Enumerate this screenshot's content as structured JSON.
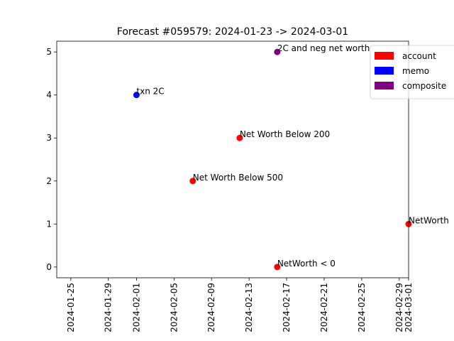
{
  "chart_data": {
    "type": "scatter",
    "title": "Forecast #059579: 2024-01-23 -> 2024-03-01",
    "xlabel": "",
    "ylabel": "",
    "x_type": "date",
    "xlim": [
      "2024-01-23",
      "2024-03-01"
    ],
    "ylim": [
      -0.25,
      5.25
    ],
    "x_ticks": [
      "2024-01-25",
      "2024-01-29",
      "2024-02-01",
      "2024-02-05",
      "2024-02-09",
      "2024-02-13",
      "2024-02-17",
      "2024-02-21",
      "2024-02-25",
      "2024-02-29",
      "2024-03-01"
    ],
    "y_ticks": [
      0,
      1,
      2,
      3,
      4,
      5
    ],
    "grid": false,
    "legend_position": "top-right",
    "legend": [
      {
        "label": "account",
        "color": "#ff0000"
      },
      {
        "label": "memo",
        "color": "#0000ff"
      },
      {
        "label": "composite",
        "color": "#800080"
      }
    ],
    "points": [
      {
        "x": "2024-02-01",
        "y": 4,
        "label": "txn 2C",
        "color": "#0000ff"
      },
      {
        "x": "2024-02-07",
        "y": 2,
        "label": "Net Worth Below 500",
        "color": "#ff0000"
      },
      {
        "x": "2024-02-12",
        "y": 3,
        "label": "Net Worth Below 200",
        "color": "#ff0000"
      },
      {
        "x": "2024-02-16",
        "y": 5,
        "label": "2C and neg net worth",
        "color": "#800080"
      },
      {
        "x": "2024-02-16",
        "y": 0,
        "label": "NetWorth < 0",
        "color": "#ff0000"
      },
      {
        "x": "2024-03-01",
        "y": 1,
        "label": "NetWorth",
        "color": "#ff0000"
      }
    ]
  }
}
